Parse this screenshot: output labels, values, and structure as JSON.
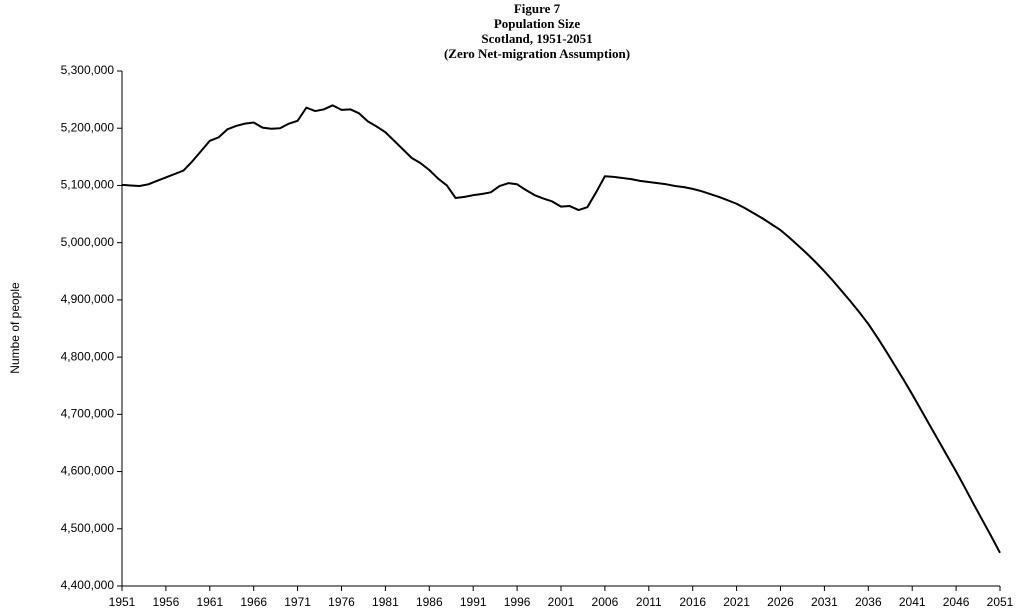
{
  "chart_data": {
    "type": "line",
    "title": "Figure 7",
    "subtitle": [
      "Population Size",
      "Scotland, 1951-2051",
      "(Zero Net-migration Assumption)"
    ],
    "y_label": "Numbe of people",
    "x": [
      1951,
      1952,
      1953,
      1954,
      1955,
      1956,
      1957,
      1958,
      1959,
      1960,
      1961,
      1962,
      1963,
      1964,
      1965,
      1966,
      1967,
      1968,
      1969,
      1970,
      1971,
      1972,
      1973,
      1974,
      1975,
      1976,
      1977,
      1978,
      1979,
      1980,
      1981,
      1982,
      1983,
      1984,
      1985,
      1986,
      1987,
      1988,
      1989,
      1990,
      1991,
      1992,
      1993,
      1994,
      1995,
      1996,
      1997,
      1998,
      1999,
      2000,
      2001,
      2002,
      2003,
      2004,
      2005,
      2006,
      2007,
      2008,
      2009,
      2010,
      2011,
      2012,
      2013,
      2014,
      2015,
      2016,
      2017,
      2018,
      2019,
      2020,
      2021,
      2022,
      2023,
      2024,
      2025,
      2026,
      2027,
      2028,
      2029,
      2030,
      2031,
      2032,
      2033,
      2034,
      2035,
      2036,
      2037,
      2038,
      2039,
      2040,
      2041,
      2042,
      2043,
      2044,
      2045,
      2046,
      2047,
      2048,
      2049,
      2050,
      2051
    ],
    "series": [
      {
        "color": "#000000",
        "values": [
          5101000,
          5100000,
          5099000,
          5102000,
          5108000,
          5114000,
          5120000,
          5126000,
          5142000,
          5160000,
          5178000,
          5184000,
          5198000,
          5204000,
          5208000,
          5210000,
          5201000,
          5199000,
          5200000,
          5208000,
          5213000,
          5236000,
          5230000,
          5233000,
          5240000,
          5232000,
          5233000,
          5226000,
          5212000,
          5203000,
          5193000,
          5178000,
          5163000,
          5148000,
          5139000,
          5127000,
          5112000,
          5100000,
          5078000,
          5080000,
          5083000,
          5085000,
          5088000,
          5099000,
          5104000,
          5102000,
          5092000,
          5083000,
          5077000,
          5072000,
          5063000,
          5064000,
          5057000,
          5062000,
          5088000,
          5116000,
          5115000,
          5113000,
          5111000,
          5108000,
          5106000,
          5104000,
          5102000,
          5099000,
          5097000,
          5094000,
          5090000,
          5085000,
          5080000,
          5074000,
          5068000,
          5060000,
          5051000,
          5042000,
          5032000,
          5022000,
          5009000,
          4995000,
          4981000,
          4966000,
          4950000,
          4933000,
          4915000,
          4897000,
          4878000,
          4858000,
          4835000,
          4811000,
          4786000,
          4761000,
          4735000,
          4708000,
          4681000,
          4654000,
          4627000,
          4600000,
          4572000,
          4543000,
          4515000,
          4487000,
          4458000
        ]
      }
    ],
    "xlim": [
      1951,
      2051
    ],
    "xticks": [
      1951,
      1956,
      1961,
      1966,
      1971,
      1976,
      1981,
      1986,
      1991,
      1996,
      2001,
      2006,
      2011,
      2016,
      2021,
      2026,
      2031,
      2036,
      2041,
      2046,
      2051
    ],
    "ylim": [
      4400000,
      5300000
    ],
    "yticks": [
      {
        "value": 4400000,
        "label": "4,400,000"
      },
      {
        "value": 4500000,
        "label": "4,500,000"
      },
      {
        "value": 4600000,
        "label": "4,600,000"
      },
      {
        "value": 4700000,
        "label": "4,700,000"
      },
      {
        "value": 4800000,
        "label": "4,800,000"
      },
      {
        "value": 4900000,
        "label": "4,900,000"
      },
      {
        "value": 5000000,
        "label": "5,000,000"
      },
      {
        "value": 5100000,
        "label": "5,100,000"
      },
      {
        "value": 5200000,
        "label": "5,200,000"
      },
      {
        "value": 5300000,
        "label": "5,300,000"
      }
    ],
    "grid": false
  }
}
